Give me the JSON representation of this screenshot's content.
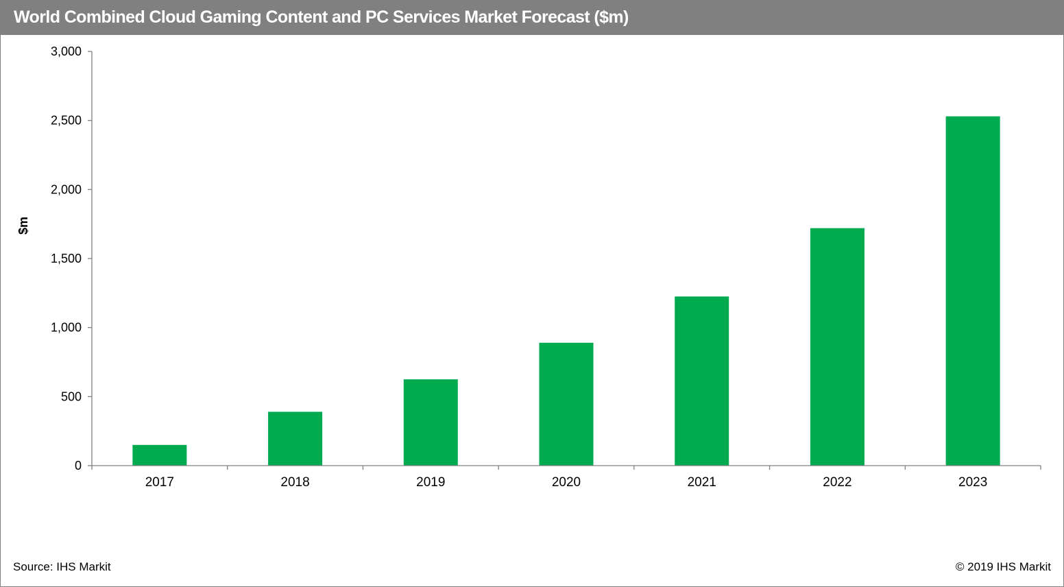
{
  "header": {
    "title": "World Combined Cloud Gaming Content and PC Services Market Forecast ($m)"
  },
  "footer": {
    "source": "Source: IHS Markit",
    "copyright": "© 2019 IHS Markit"
  },
  "colors": {
    "bar": "#00AA4F",
    "header_bg": "#808080",
    "axis": "#808080"
  },
  "chart_data": {
    "type": "bar",
    "title": "World Combined Cloud Gaming Content and PC Services Market Forecast ($m)",
    "xlabel": "",
    "ylabel": "$m",
    "categories": [
      "2017",
      "2018",
      "2019",
      "2020",
      "2021",
      "2022",
      "2023"
    ],
    "series": [
      {
        "values": [
          150,
          390,
          625,
          890,
          1225,
          1720,
          2530
        ]
      }
    ],
    "ylim": [
      0,
      3000
    ],
    "yticks": [
      0,
      500,
      1000,
      1500,
      2000,
      2500,
      3000
    ],
    "ytick_labels": [
      "0",
      "500",
      "1,000",
      "1,500",
      "2,000",
      "2,500",
      "3,000"
    ],
    "grid": false,
    "legend": "none"
  }
}
